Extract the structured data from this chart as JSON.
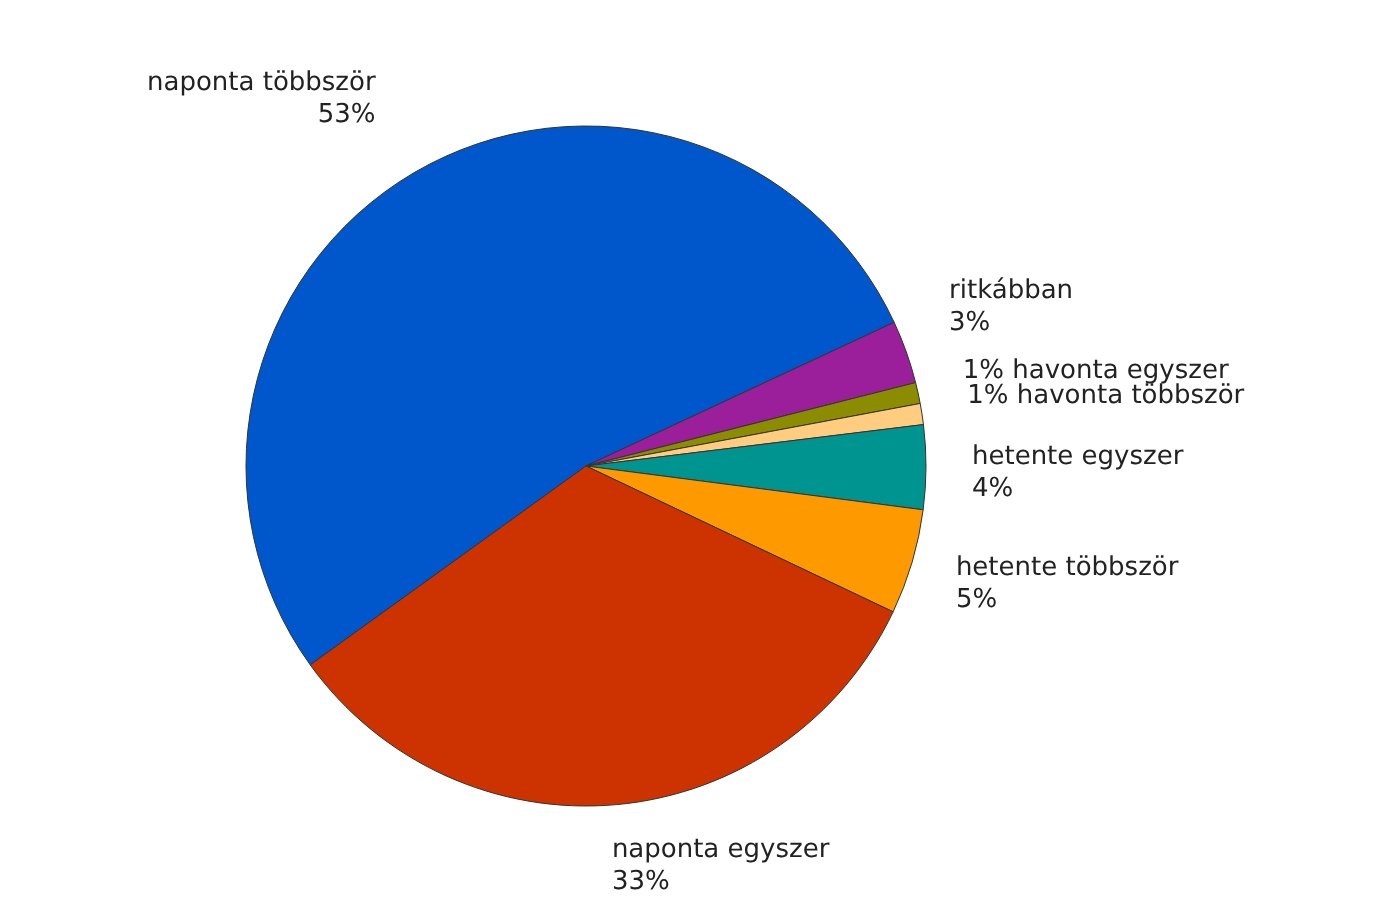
{
  "chart_data": {
    "type": "pie",
    "categories": [
      "naponta többször",
      "ritkábban",
      "havonta egyszer",
      "havonta többször",
      "hetente egyszer",
      "hetente többször",
      "naponta egyszer"
    ],
    "values": [
      53,
      3,
      1,
      1,
      4,
      5,
      33
    ],
    "value_labels": [
      "53%",
      "3%",
      "1%",
      "1%",
      "4%",
      "5%",
      "33%"
    ],
    "colors": [
      "#0057cc",
      "#9b1f9b",
      "#8c8c00",
      "#ffcc80",
      "#009490",
      "#ff9900",
      "#cc3300"
    ]
  }
}
